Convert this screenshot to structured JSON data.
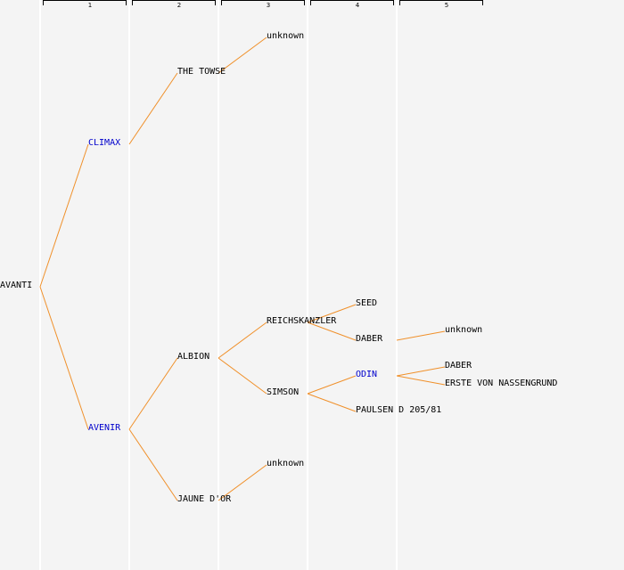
{
  "colors": {
    "edge": "#f0902a",
    "link": "#0000cc",
    "text": "#000000"
  },
  "generations": [
    "1",
    "2",
    "3",
    "4",
    "5"
  ],
  "nodes": [
    {
      "id": "root",
      "label": "AVANTI",
      "link": false
    },
    {
      "id": "climax",
      "label": "CLIMAX",
      "link": true
    },
    {
      "id": "avenir",
      "label": "AVENIR",
      "link": true
    },
    {
      "id": "the-towse",
      "label": "THE TOWSE",
      "link": false
    },
    {
      "id": "albion",
      "label": "ALBION",
      "link": false
    },
    {
      "id": "jaune-dor",
      "label": "JAUNE D'OR",
      "link": false
    },
    {
      "id": "unknown-1",
      "label": "unknown",
      "link": false
    },
    {
      "id": "reichskanzler",
      "label": "REICHSKANZLER",
      "link": false
    },
    {
      "id": "simson",
      "label": "SIMSON",
      "link": false
    },
    {
      "id": "unknown-2",
      "label": "unknown",
      "link": false
    },
    {
      "id": "seed",
      "label": "SEED",
      "link": false
    },
    {
      "id": "daber-1",
      "label": "DABER",
      "link": false
    },
    {
      "id": "odin",
      "label": "ODIN",
      "link": true
    },
    {
      "id": "paulsen",
      "label": "PAULSEN D 205/81",
      "link": false
    },
    {
      "id": "unknown-3",
      "label": "unknown",
      "link": false
    },
    {
      "id": "daber-2",
      "label": "DABER",
      "link": false
    },
    {
      "id": "erste",
      "label": "ERSTE VON NASSENGRUND",
      "link": false
    }
  ],
  "edges": [
    [
      "root",
      "climax"
    ],
    [
      "root",
      "avenir"
    ],
    [
      "climax",
      "the-towse"
    ],
    [
      "avenir",
      "albion"
    ],
    [
      "avenir",
      "jaune-dor"
    ],
    [
      "the-towse",
      "unknown-1"
    ],
    [
      "albion",
      "reichskanzler"
    ],
    [
      "albion",
      "simson"
    ],
    [
      "jaune-dor",
      "unknown-2"
    ],
    [
      "reichskanzler",
      "seed"
    ],
    [
      "reichskanzler",
      "daber-1"
    ],
    [
      "simson",
      "odin"
    ],
    [
      "simson",
      "paulsen"
    ],
    [
      "daber-1",
      "unknown-3"
    ],
    [
      "odin",
      "daber-2"
    ],
    [
      "odin",
      "erste"
    ]
  ]
}
